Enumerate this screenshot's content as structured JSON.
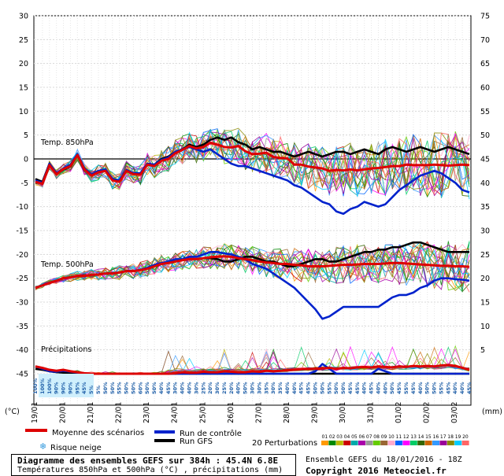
{
  "chart_data": {
    "type": "line",
    "title": "Diagramme des ensembles GEFS sur 384h : 45.4N 6.8E",
    "subtitle": "Températures 850hPa et 500hPa (°C) , précipitations (mm)",
    "left_unit": "(°C)",
    "right_unit": "(mm)",
    "left_ticks": [
      30,
      25,
      20,
      15,
      10,
      5,
      0,
      -5,
      -10,
      -15,
      -20,
      -25,
      -30,
      -35,
      -40,
      -45
    ],
    "right_ticks": [
      75,
      70,
      65,
      60,
      55,
      50,
      45,
      40,
      35,
      30,
      25,
      20,
      15,
      10,
      5
    ],
    "ylim": [
      -45,
      30
    ],
    "x_labels": [
      "19/01",
      "20/01",
      "21/01",
      "22/01",
      "23/01",
      "24/01",
      "25/01",
      "26/01",
      "27/01",
      "28/01",
      "29/01",
      "30/01",
      "31/01",
      "01/02",
      "02/02",
      "03/02"
    ],
    "annotations": [
      "Temp. 850hPa",
      "Temp. 500hPa",
      "Précipitations"
    ],
    "snow_label": "Risque neige",
    "snow_risk": [
      "100%",
      "100%",
      "100%",
      "90%",
      "90%",
      "90%",
      "95%",
      "45%",
      "5%",
      "5%",
      "50%",
      "50%",
      "55%",
      "50%",
      "50%",
      "60%",
      "50%",
      "50%",
      "40%",
      "45%",
      "30%",
      "40%",
      "40%",
      "30%",
      "25%",
      "20%",
      "30%",
      "25%",
      "20%",
      "40%",
      "50%",
      "30%",
      "30%",
      "35%",
      "30%",
      "35%",
      "40%",
      "40%",
      "45%",
      "45%",
      "50%",
      "50%",
      "55%",
      "50%",
      "50%",
      "45%",
      "45%",
      "40%",
      "45%",
      "40%",
      "40%",
      "50%",
      "45%",
      "55%",
      "45%",
      "40%",
      "50%",
      "50%",
      "55%",
      "45%",
      "40%",
      "40%",
      "45%"
    ],
    "series": [
      {
        "name": "Moyenne des scénarios",
        "color": "#dd0000",
        "group": "t850",
        "values": [
          -4.8,
          -5.2,
          -1.3,
          -3.2,
          -2.1,
          -1.5,
          0.8,
          -2.2,
          -3.5,
          -2.8,
          -2.5,
          -4.5,
          -4.8,
          -2.5,
          -3.2,
          -3.3,
          -1.2,
          -1.5,
          -0.4,
          0.0,
          1.2,
          1.9,
          2.7,
          2.2,
          2.5,
          3.4,
          3.0,
          2.5,
          2.4,
          2.7,
          1.6,
          1.0,
          1.1,
          1.3,
          0.4,
          0.2,
          0.1,
          -1.2,
          -1.2,
          -1.6,
          -1.8,
          -2.0,
          -2.5,
          -2.3,
          -2.4,
          -2.2,
          -2.4,
          -2.2,
          -2.0,
          -1.9,
          -1.7,
          -1.5,
          -1.5,
          -1.2,
          -1.3,
          -1.3,
          -1.3,
          -1.2,
          -1.3,
          -1.4,
          -1.3,
          -1.2,
          -1.3
        ]
      },
      {
        "name": "Run de contrôle",
        "color": "#0022cc",
        "group": "t850",
        "values": [
          -4.5,
          -5.0,
          -1.0,
          -3.0,
          -2.0,
          -1.2,
          1.0,
          -2.0,
          -3.2,
          -2.5,
          -2.2,
          -4.2,
          -4.5,
          -2.3,
          -3.0,
          -3.0,
          -1.0,
          -1.2,
          -0.2,
          0.3,
          1.5,
          2.0,
          2.5,
          2.0,
          1.5,
          2.0,
          1.0,
          0.0,
          -1.0,
          -1.5,
          -1.5,
          -2.0,
          -2.5,
          -3.0,
          -3.5,
          -4.0,
          -4.5,
          -5.5,
          -6.0,
          -7.0,
          -8.0,
          -9.0,
          -9.5,
          -11.0,
          -11.5,
          -10.5,
          -10.0,
          -9.0,
          -9.5,
          -10.0,
          -9.5,
          -8.0,
          -6.5,
          -5.5,
          -4.5,
          -3.5,
          -3.0,
          -2.5,
          -3.0,
          -4.0,
          -5.0,
          -6.5,
          -7.0
        ]
      },
      {
        "name": "Run GFS",
        "color": "#000000",
        "group": "t850",
        "values": [
          -4.2,
          -4.8,
          -1.0,
          -3.0,
          -2.2,
          -1.6,
          1.0,
          -2.0,
          -3.4,
          -2.6,
          -2.4,
          -4.2,
          -4.6,
          -2.4,
          -3.0,
          -3.0,
          -1.0,
          -1.2,
          0.0,
          0.5,
          1.5,
          2.0,
          3.0,
          2.5,
          3.0,
          4.0,
          4.5,
          4.0,
          4.5,
          3.5,
          3.0,
          2.0,
          2.5,
          2.0,
          1.5,
          1.5,
          1.0,
          0.5,
          1.0,
          1.5,
          1.0,
          0.5,
          1.0,
          1.5,
          1.5,
          1.0,
          1.5,
          2.0,
          1.5,
          1.0,
          2.0,
          2.5,
          2.0,
          1.5,
          2.0,
          2.5,
          2.0,
          1.5,
          2.0,
          2.5,
          2.0,
          1.5,
          1.0
        ]
      },
      {
        "name": "Moyenne des scénarios",
        "color": "#dd0000",
        "group": "t500",
        "values": [
          -27.0,
          -26.5,
          -26.0,
          -25.5,
          -25.0,
          -24.8,
          -24.5,
          -24.5,
          -24.3,
          -24.2,
          -24.0,
          -24.0,
          -23.8,
          -23.5,
          -23.5,
          -23.3,
          -23.0,
          -22.5,
          -22.0,
          -21.8,
          -21.5,
          -21.2,
          -21.0,
          -21.0,
          -20.8,
          -20.6,
          -20.5,
          -20.4,
          -20.5,
          -20.8,
          -21.0,
          -21.2,
          -21.5,
          -21.7,
          -21.8,
          -22.0,
          -22.0,
          -22.2,
          -22.3,
          -22.5,
          -22.5,
          -22.5,
          -22.4,
          -22.3,
          -22.2,
          -22.2,
          -22.1,
          -22.0,
          -22.0,
          -22.0,
          -21.9,
          -21.8,
          -21.8,
          -21.9,
          -22.0,
          -22.1,
          -22.2,
          -22.3,
          -22.4,
          -22.4,
          -22.5,
          -22.5,
          -22.6
        ]
      },
      {
        "name": "Run de contrôle",
        "color": "#0022cc",
        "group": "t500",
        "values": [
          -27.0,
          -26.5,
          -26.0,
          -25.5,
          -25.0,
          -24.8,
          -24.5,
          -24.5,
          -24.3,
          -24.2,
          -24.0,
          -24.0,
          -23.8,
          -23.5,
          -23.5,
          -23.2,
          -22.8,
          -22.2,
          -21.8,
          -21.5,
          -21.0,
          -21.0,
          -20.5,
          -20.5,
          -20.0,
          -19.5,
          -19.5,
          -19.8,
          -20.0,
          -20.5,
          -21.0,
          -22.0,
          -22.5,
          -23.0,
          -24.0,
          -25.0,
          -26.0,
          -27.0,
          -28.5,
          -30.0,
          -31.5,
          -33.5,
          -33.0,
          -32.0,
          -31.0,
          -31.0,
          -31.0,
          -31.0,
          -31.0,
          -31.0,
          -30.0,
          -29.0,
          -28.5,
          -28.5,
          -28.0,
          -27.0,
          -26.5,
          -25.5,
          -25.0,
          -25.0,
          -25.2,
          -25.3,
          -25.5
        ]
      },
      {
        "name": "Run GFS",
        "color": "#000000",
        "group": "t500",
        "values": [
          -27.0,
          -26.5,
          -26.0,
          -25.5,
          -25.0,
          -24.8,
          -24.5,
          -24.5,
          -24.3,
          -24.2,
          -24.0,
          -24.0,
          -23.8,
          -23.5,
          -23.5,
          -23.3,
          -23.0,
          -22.5,
          -22.0,
          -21.8,
          -21.5,
          -21.2,
          -21.0,
          -21.0,
          -20.8,
          -20.8,
          -21.0,
          -21.5,
          -21.5,
          -21.0,
          -20.5,
          -20.5,
          -21.0,
          -21.5,
          -21.5,
          -22.0,
          -22.5,
          -22.5,
          -22.0,
          -21.5,
          -21.0,
          -21.0,
          -21.5,
          -21.5,
          -21.0,
          -20.5,
          -20.0,
          -19.5,
          -19.5,
          -19.0,
          -19.0,
          -18.5,
          -18.5,
          -18.0,
          -17.5,
          -17.5,
          -18.0,
          -18.5,
          -19.0,
          -19.5,
          -19.5,
          -19.5,
          -19.5
        ]
      },
      {
        "name": "Moyenne des scénarios",
        "color": "#dd0000",
        "group": "precip",
        "values": [
          1.5,
          1.2,
          0.8,
          0.6,
          0.8,
          0.5,
          0.3,
          0.1,
          0.0,
          0.0,
          0.0,
          0.0,
          0.0,
          0.0,
          0.0,
          0.0,
          0.0,
          0.0,
          0.0,
          0.0,
          0.1,
          0.3,
          0.2,
          0.2,
          0.4,
          0.3,
          0.3,
          0.5,
          0.4,
          0.3,
          0.3,
          0.5,
          0.4,
          0.6,
          0.5,
          0.6,
          0.7,
          0.8,
          0.9,
          1.0,
          1.0,
          1.1,
          1.2,
          1.0,
          1.2,
          1.1,
          1.3,
          1.4,
          1.3,
          1.5,
          1.4,
          1.3,
          1.5,
          1.4,
          1.6,
          1.5,
          1.6,
          1.5,
          1.7,
          1.8,
          1.6,
          1.2,
          0.8
        ]
      },
      {
        "name": "Run de contrôle",
        "color": "#0022cc",
        "group": "precip",
        "values": [
          1.5,
          1.0,
          0.5,
          0.4,
          0.6,
          0.4,
          0.2,
          0.0,
          0.0,
          0.0,
          0.0,
          0.0,
          0.0,
          0.0,
          0.0,
          0.0,
          0.0,
          0.0,
          0.0,
          0.0,
          0.0,
          0.0,
          0.0,
          0.0,
          0.0,
          0.0,
          0.0,
          0.0,
          0.0,
          0.0,
          0.0,
          0.0,
          0.0,
          0.0,
          0.0,
          0.0,
          0.0,
          0.0,
          0.0,
          0.0,
          0.5,
          2.0,
          1.0,
          0.0,
          0.0,
          0.0,
          0.0,
          0.0,
          0.0,
          1.0,
          0.5,
          0.0,
          0.0,
          0.0,
          0.0,
          0.0,
          0.0,
          0.0,
          0.0,
          0.0,
          0.0,
          0.0,
          0.0
        ]
      },
      {
        "name": "Run GFS",
        "color": "#000000",
        "group": "precip",
        "values": [
          1.0,
          0.8,
          0.5,
          0.3,
          0.2,
          0.1,
          0.0,
          0.0,
          0.0,
          0.0,
          0.0,
          0.0,
          0.0,
          0.0,
          0.0,
          0.0,
          0.0,
          0.0,
          0.0,
          0.0,
          0.0,
          0.0,
          0.0,
          0.0,
          0.0,
          0.0,
          0.0,
          0.0,
          0.0,
          0.0,
          0.0,
          0.0,
          0.0,
          0.0,
          0.0,
          0.0,
          0.0,
          0.0,
          0.0,
          0.0,
          0.0,
          0.0,
          0.0,
          0.0,
          0.0,
          0.0,
          0.0,
          0.0,
          0.0,
          0.0,
          0.0,
          0.0,
          0.0,
          0.0,
          0.0,
          0.0,
          0.0,
          0.0,
          0.0,
          0.0,
          0.0,
          0.0,
          0.0
        ]
      }
    ],
    "perturbations": {
      "label": "20 Perturbations",
      "ids": [
        "01",
        "02",
        "03",
        "04",
        "05",
        "06",
        "07",
        "08",
        "09",
        "10",
        "11",
        "12",
        "13",
        "14",
        "15",
        "16",
        "17",
        "18",
        "19",
        "20"
      ],
      "colors": [
        "#ff9900",
        "#008800",
        "#bbbb00",
        "#cc0000",
        "#00aaaa",
        "#aa00aa",
        "#999999",
        "#66cc00",
        "#996633",
        "#ffaacc",
        "#0066ff",
        "#ff00ff",
        "#00cc66",
        "#336600",
        "#cc6600",
        "#3399ff",
        "#990099",
        "#888800",
        "#00ccff",
        "#ff6666"
      ]
    }
  },
  "legend": {
    "mean": "Moyenne des scénarios",
    "control": "Run de contrôle",
    "gfs": "Run GFS",
    "colors": {
      "mean": "#dd0000",
      "control": "#0022cc",
      "gfs": "#000000"
    }
  },
  "footer": {
    "title": "Diagramme des ensembles GEFS sur 384h : 45.4N 6.8E",
    "subtitle": "Températures 850hPa et 500hPa (°C) , précipitations (mm)",
    "run": "Ensemble GEFS du 18/01/2016 - 18Z",
    "copyright": "Copyright 2016 Meteociel.fr"
  }
}
